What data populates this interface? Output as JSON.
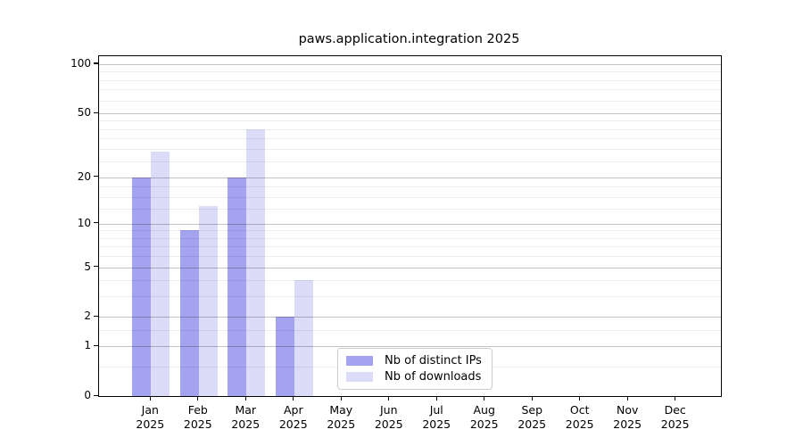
{
  "title": "paws.application.integration 2025",
  "chart_data": {
    "type": "bar",
    "title": "paws.application.integration 2025",
    "xlabel": "",
    "ylabel": "",
    "categories": [
      "Jan",
      "Feb",
      "Mar",
      "Apr",
      "May",
      "Jun",
      "Jul",
      "Aug",
      "Sep",
      "Oct",
      "Nov",
      "Dec"
    ],
    "category_year": "2025",
    "series": [
      {
        "name": "Nb of distinct IPs",
        "color": "#a3a3f0",
        "values": [
          20,
          9,
          20,
          2,
          null,
          null,
          null,
          null,
          null,
          null,
          null,
          null
        ]
      },
      {
        "name": "Nb of downloads",
        "color": "#dcdcf8",
        "values": [
          29,
          13,
          40,
          4,
          null,
          null,
          null,
          null,
          null,
          null,
          null,
          null
        ]
      }
    ],
    "yscale": "log1p",
    "ylim": [
      0,
      113
    ],
    "yticks": [
      0,
      1,
      2,
      5,
      10,
      20,
      50,
      100
    ],
    "minor_yticks": [
      0.5,
      1.5,
      3,
      4,
      6,
      7,
      8,
      9,
      12.5,
      15,
      17.5,
      25,
      30,
      35,
      40,
      45,
      60,
      70,
      80,
      90
    ],
    "grid": true,
    "grid_above_bars": true,
    "legend_position": "bottom-center"
  }
}
